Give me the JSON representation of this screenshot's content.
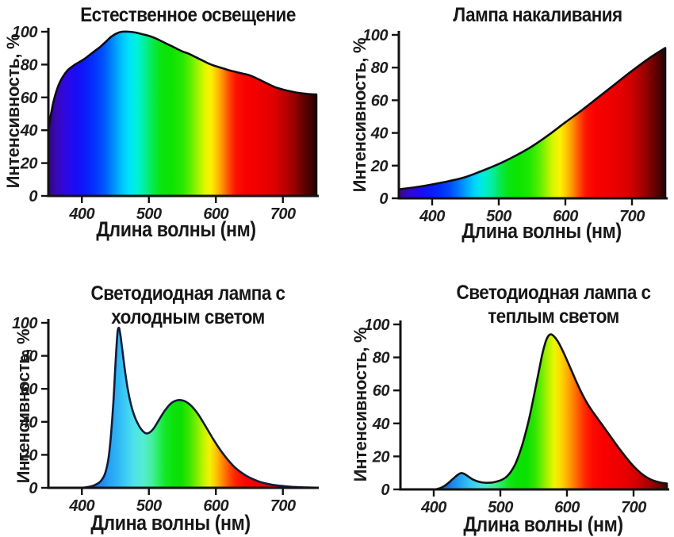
{
  "page": {
    "background_color": "#ffffff",
    "language": "ru"
  },
  "chart_data": [
    {
      "id": "natural-lighting",
      "type": "area",
      "title": "Естественное освещение",
      "xlabel": "Длина волны (нм)",
      "ylabel": "Интенсивность, %",
      "xlim": [
        350,
        750
      ],
      "ylim": [
        0,
        100
      ],
      "x_ticks": [
        400,
        500,
        600,
        700
      ],
      "y_ticks": [
        0,
        20,
        40,
        60,
        80,
        100
      ],
      "grid": false,
      "legend": false,
      "axis_color": "#121212",
      "outline_color": "#0d0d14",
      "fill": "spectral-gradient",
      "gradient_stops": [
        [
          350,
          "#2f0772"
        ],
        [
          362,
          "#3908b8"
        ],
        [
          375,
          "#2f08e0"
        ],
        [
          390,
          "#1a0cf4"
        ],
        [
          405,
          "#0b1cfa"
        ],
        [
          420,
          "#0334ff"
        ],
        [
          435,
          "#005cff"
        ],
        [
          448,
          "#0092ff"
        ],
        [
          460,
          "#00c4ff"
        ],
        [
          472,
          "#00e6fa"
        ],
        [
          484,
          "#00f2d0"
        ],
        [
          496,
          "#04ee8a"
        ],
        [
          508,
          "#08e83c"
        ],
        [
          520,
          "#0ae40c"
        ],
        [
          535,
          "#0ce400"
        ],
        [
          550,
          "#28e800"
        ],
        [
          562,
          "#5eee00"
        ],
        [
          574,
          "#a4f400"
        ],
        [
          584,
          "#e2f800"
        ],
        [
          593,
          "#fcf000"
        ],
        [
          602,
          "#ffc000"
        ],
        [
          611,
          "#ff8800"
        ],
        [
          620,
          "#ff4600"
        ],
        [
          630,
          "#fc1200"
        ],
        [
          645,
          "#f80000"
        ],
        [
          665,
          "#f00000"
        ],
        [
          685,
          "#e00000"
        ],
        [
          702,
          "#c00000"
        ],
        [
          718,
          "#940000"
        ],
        [
          734,
          "#5a0000"
        ],
        [
          750,
          "#230000"
        ]
      ],
      "points": [
        [
          350,
          40
        ],
        [
          354,
          50
        ],
        [
          358,
          58
        ],
        [
          363,
          65
        ],
        [
          368,
          70
        ],
        [
          374,
          74
        ],
        [
          380,
          77
        ],
        [
          388,
          79.5
        ],
        [
          396,
          81.5
        ],
        [
          404,
          83.5
        ],
        [
          412,
          86
        ],
        [
          420,
          88.5
        ],
        [
          428,
          91
        ],
        [
          436,
          94
        ],
        [
          444,
          97
        ],
        [
          452,
          99
        ],
        [
          460,
          100
        ],
        [
          470,
          100
        ],
        [
          480,
          99.5
        ],
        [
          490,
          98.5
        ],
        [
          500,
          97.5
        ],
        [
          510,
          96
        ],
        [
          520,
          94
        ],
        [
          530,
          92
        ],
        [
          540,
          90
        ],
        [
          550,
          88
        ],
        [
          560,
          86.5
        ],
        [
          570,
          84.5
        ],
        [
          580,
          82.5
        ],
        [
          590,
          80.5
        ],
        [
          600,
          79
        ],
        [
          610,
          77.8
        ],
        [
          620,
          76.5
        ],
        [
          630,
          75.5
        ],
        [
          640,
          74.5
        ],
        [
          650,
          73.5
        ],
        [
          660,
          71.8
        ],
        [
          670,
          69.8
        ],
        [
          680,
          67.8
        ],
        [
          690,
          66
        ],
        [
          700,
          64.8
        ],
        [
          710,
          63.8
        ],
        [
          720,
          63
        ],
        [
          730,
          62.4
        ],
        [
          740,
          62
        ],
        [
          750,
          61.8
        ]
      ]
    },
    {
      "id": "incandescent-lamp",
      "type": "area",
      "title": "Лампа накаливания",
      "xlabel": "Длина волны (нм)",
      "ylabel": "Интенсивность, %",
      "xlim": [
        350,
        750
      ],
      "ylim": [
        0,
        100
      ],
      "x_ticks": [
        400,
        500,
        600,
        700
      ],
      "y_ticks": [
        0,
        20,
        40,
        60,
        80,
        100
      ],
      "grid": false,
      "legend": false,
      "axis_color": "#121212",
      "outline_color": "#0d0d14",
      "fill": "spectral-gradient",
      "gradient_stops": [
        [
          350,
          "#38087e"
        ],
        [
          364,
          "#3408c8"
        ],
        [
          378,
          "#2209ee"
        ],
        [
          394,
          "#0f15fa"
        ],
        [
          410,
          "#0328ff"
        ],
        [
          426,
          "#0048ff"
        ],
        [
          440,
          "#0078ff"
        ],
        [
          452,
          "#00a8ff"
        ],
        [
          464,
          "#00d4fa"
        ],
        [
          476,
          "#00ecdc"
        ],
        [
          490,
          "#02eea0"
        ],
        [
          502,
          "#06e852"
        ],
        [
          514,
          "#0ae414"
        ],
        [
          530,
          "#0ce400"
        ],
        [
          546,
          "#1ee800"
        ],
        [
          560,
          "#54ee00"
        ],
        [
          572,
          "#9cf200"
        ],
        [
          582,
          "#dcf600"
        ],
        [
          592,
          "#fcf200"
        ],
        [
          602,
          "#ffc400"
        ],
        [
          612,
          "#ff8a00"
        ],
        [
          621,
          "#ff4a00"
        ],
        [
          631,
          "#fc1400"
        ],
        [
          646,
          "#f80000"
        ],
        [
          666,
          "#f00000"
        ],
        [
          686,
          "#e20000"
        ],
        [
          704,
          "#c40000"
        ],
        [
          720,
          "#980000"
        ],
        [
          736,
          "#600000"
        ],
        [
          750,
          "#2a0000"
        ]
      ],
      "points": [
        [
          350,
          5.5
        ],
        [
          375,
          6.8
        ],
        [
          400,
          8.5
        ],
        [
          425,
          10.5
        ],
        [
          450,
          13
        ],
        [
          475,
          16.8
        ],
        [
          500,
          21
        ],
        [
          525,
          26
        ],
        [
          550,
          31.8
        ],
        [
          575,
          38.8
        ],
        [
          600,
          46.5
        ],
        [
          625,
          54
        ],
        [
          650,
          62
        ],
        [
          675,
          70
        ],
        [
          700,
          78
        ],
        [
          725,
          85.5
        ],
        [
          750,
          92
        ]
      ]
    },
    {
      "id": "led-cold-light",
      "type": "area",
      "title": "Светодиодная лампа с\nхолодным светом",
      "xlabel": "Длина волны (нм)",
      "ylabel": "Интенсивность, %",
      "xlim": [
        350,
        750
      ],
      "ylim": [
        0,
        100
      ],
      "x_ticks": [
        400,
        500,
        600,
        700
      ],
      "y_ticks": [
        0,
        20,
        40,
        60,
        80,
        100
      ],
      "grid": false,
      "legend": false,
      "axis_color": "#121212",
      "outline_color": "#111c38",
      "fill": "spectral-gradient",
      "gradient_stops": [
        [
          350,
          "#1a40d8"
        ],
        [
          410,
          "#1a52e4"
        ],
        [
          425,
          "#1f7cee"
        ],
        [
          440,
          "#27a0f2"
        ],
        [
          452,
          "#2eb2f4"
        ],
        [
          465,
          "#3cccf6"
        ],
        [
          478,
          "#4ee2ea"
        ],
        [
          492,
          "#55ecd0"
        ],
        [
          504,
          "#44efa0"
        ],
        [
          514,
          "#28ee62"
        ],
        [
          524,
          "#14e828"
        ],
        [
          536,
          "#0ae20a"
        ],
        [
          548,
          "#0de000"
        ],
        [
          560,
          "#38e600"
        ],
        [
          572,
          "#80ee00"
        ],
        [
          582,
          "#c4f400"
        ],
        [
          591,
          "#f4f200"
        ],
        [
          600,
          "#ffc600"
        ],
        [
          610,
          "#ff8800"
        ],
        [
          620,
          "#ff4c00"
        ],
        [
          630,
          "#fe2000"
        ],
        [
          642,
          "#fa0800"
        ],
        [
          658,
          "#f60000"
        ],
        [
          675,
          "#f00000"
        ],
        [
          695,
          "#e60000"
        ],
        [
          715,
          "#da0000"
        ],
        [
          732,
          "#cc0000"
        ],
        [
          750,
          "#c00000"
        ]
      ],
      "points": [
        [
          350,
          0
        ],
        [
          395,
          0
        ],
        [
          405,
          0.3
        ],
        [
          415,
          1
        ],
        [
          422,
          2.2
        ],
        [
          428,
          4
        ],
        [
          434,
          8
        ],
        [
          439,
          16
        ],
        [
          443,
          30
        ],
        [
          447,
          52
        ],
        [
          450,
          74
        ],
        [
          453,
          93
        ],
        [
          455,
          97
        ],
        [
          457,
          94
        ],
        [
          460,
          85
        ],
        [
          464,
          72
        ],
        [
          468,
          61
        ],
        [
          473,
          51
        ],
        [
          478,
          44
        ],
        [
          484,
          38.5
        ],
        [
          490,
          34.8
        ],
        [
          496,
          33
        ],
        [
          502,
          33.8
        ],
        [
          508,
          36.5
        ],
        [
          514,
          40.5
        ],
        [
          520,
          44.5
        ],
        [
          526,
          48
        ],
        [
          532,
          50.8
        ],
        [
          538,
          52.5
        ],
        [
          545,
          53.2
        ],
        [
          552,
          52.8
        ],
        [
          558,
          51.5
        ],
        [
          565,
          49
        ],
        [
          572,
          45.5
        ],
        [
          580,
          40.5
        ],
        [
          588,
          35
        ],
        [
          596,
          29.5
        ],
        [
          604,
          24.5
        ],
        [
          612,
          20
        ],
        [
          620,
          16
        ],
        [
          628,
          12.5
        ],
        [
          636,
          9.8
        ],
        [
          645,
          7.4
        ],
        [
          654,
          5.5
        ],
        [
          663,
          4
        ],
        [
          672,
          2.9
        ],
        [
          682,
          2
        ],
        [
          692,
          1.4
        ],
        [
          702,
          1
        ],
        [
          714,
          0.6
        ],
        [
          726,
          0.35
        ],
        [
          738,
          0.18
        ],
        [
          750,
          0.08
        ]
      ]
    },
    {
      "id": "led-warm-light",
      "type": "area",
      "title": "Светодиодная лампа с\nтеплым светом",
      "xlabel": "Длина волны (нм)",
      "ylabel": "Интенсивность, %",
      "xlim": [
        350,
        750
      ],
      "ylim": [
        0,
        100
      ],
      "x_ticks": [
        400,
        500,
        600,
        700
      ],
      "y_ticks": [
        0,
        20,
        40,
        60,
        80,
        100
      ],
      "grid": false,
      "legend": false,
      "axis_color": "#121212",
      "outline_color": "#121212",
      "fill": "spectral-gradient",
      "gradient_stops": [
        [
          350,
          "#0a38d0"
        ],
        [
          405,
          "#0c42da"
        ],
        [
          418,
          "#1468e8"
        ],
        [
          430,
          "#1c8cf0"
        ],
        [
          442,
          "#28a8f2"
        ],
        [
          455,
          "#38c6f4"
        ],
        [
          468,
          "#48dce8"
        ],
        [
          480,
          "#50eac0"
        ],
        [
          492,
          "#3cee8c"
        ],
        [
          503,
          "#24ec4e"
        ],
        [
          513,
          "#10e61a"
        ],
        [
          526,
          "#08e202"
        ],
        [
          540,
          "#0ce000"
        ],
        [
          552,
          "#30e600"
        ],
        [
          562,
          "#6eee00"
        ],
        [
          572,
          "#b4f200"
        ],
        [
          581,
          "#ecf600"
        ],
        [
          590,
          "#fcdc00"
        ],
        [
          599,
          "#ffb400"
        ],
        [
          608,
          "#ff8800"
        ],
        [
          618,
          "#ff5400"
        ],
        [
          628,
          "#ff2400"
        ],
        [
          640,
          "#fc0800"
        ],
        [
          655,
          "#f80000"
        ],
        [
          672,
          "#f20000"
        ],
        [
          690,
          "#e60000"
        ],
        [
          706,
          "#d00000"
        ],
        [
          722,
          "#aa0000"
        ],
        [
          738,
          "#7a0000"
        ],
        [
          750,
          "#500000"
        ]
      ],
      "points": [
        [
          350,
          0
        ],
        [
          398,
          0
        ],
        [
          406,
          0.4
        ],
        [
          412,
          1.2
        ],
        [
          418,
          2.6
        ],
        [
          424,
          4.6
        ],
        [
          430,
          6.8
        ],
        [
          436,
          8.8
        ],
        [
          441,
          9.9
        ],
        [
          446,
          9.4
        ],
        [
          452,
          7.8
        ],
        [
          458,
          6.2
        ],
        [
          465,
          5
        ],
        [
          472,
          4.3
        ],
        [
          480,
          4
        ],
        [
          488,
          4.2
        ],
        [
          496,
          4.9
        ],
        [
          504,
          6.2
        ],
        [
          510,
          8
        ],
        [
          516,
          10.8
        ],
        [
          522,
          15
        ],
        [
          528,
          21
        ],
        [
          534,
          28.5
        ],
        [
          540,
          37.5
        ],
        [
          546,
          48
        ],
        [
          552,
          60
        ],
        [
          558,
          72
        ],
        [
          563,
          82
        ],
        [
          568,
          89.5
        ],
        [
          572,
          93
        ],
        [
          576,
          94
        ],
        [
          580,
          93
        ],
        [
          585,
          90.5
        ],
        [
          590,
          87
        ],
        [
          596,
          82
        ],
        [
          602,
          76.5
        ],
        [
          608,
          71
        ],
        [
          615,
          64.5
        ],
        [
          622,
          58.5
        ],
        [
          630,
          52.5
        ],
        [
          638,
          47.5
        ],
        [
          646,
          43
        ],
        [
          654,
          38.5
        ],
        [
          662,
          34
        ],
        [
          670,
          29.5
        ],
        [
          678,
          25
        ],
        [
          686,
          20.8
        ],
        [
          694,
          16.8
        ],
        [
          702,
          13.2
        ],
        [
          710,
          10.2
        ],
        [
          718,
          7.8
        ],
        [
          726,
          6
        ],
        [
          734,
          4.8
        ],
        [
          742,
          4
        ],
        [
          750,
          3.6
        ]
      ]
    }
  ]
}
